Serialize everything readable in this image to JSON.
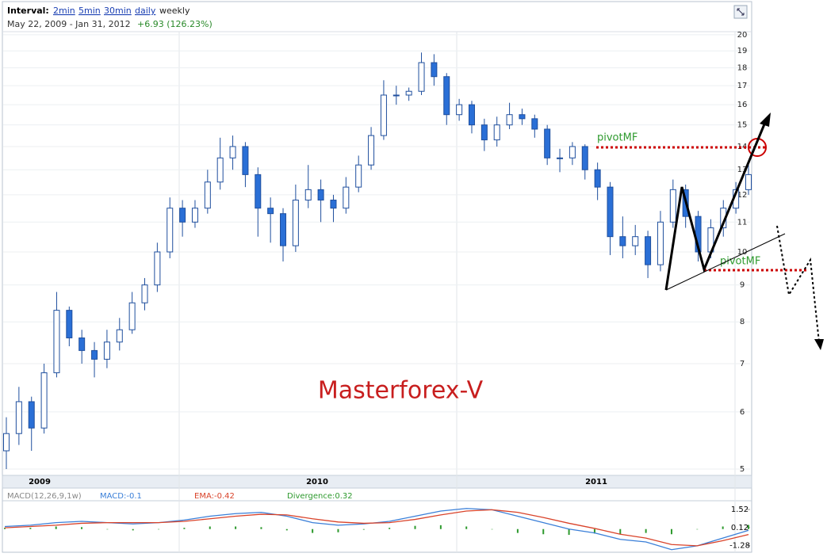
{
  "header": {
    "interval_label": "Interval:",
    "intervals": [
      "2min",
      "5min",
      "30min",
      "daily"
    ],
    "current_interval": "weekly",
    "date_range": "May 22, 2009 - Jan 31, 2012",
    "change": "+6.93 (126.23%)"
  },
  "chart_data": {
    "type": "candlestick",
    "title": "Masterforex-V",
    "log_scale": true,
    "ylim": [
      4.9,
      20.2
    ],
    "yticks": [
      5,
      6,
      7,
      8,
      9,
      10,
      11,
      12,
      13,
      14,
      15,
      16,
      17,
      18,
      19,
      20
    ],
    "x_labels": [
      "2009",
      "2010",
      "2011"
    ],
    "annotations": [
      "pivotMF",
      "pivotMF"
    ],
    "up_color": "#ffffff",
    "down_color": "#2a6fd6",
    "outline_color": "#1f4f9e",
    "open": [
      5.3,
      5.6,
      6.2,
      5.7,
      6.8,
      8.3,
      7.6,
      7.3,
      7.1,
      7.5,
      7.8,
      8.5,
      9.0,
      10.0,
      11.5,
      11.0,
      11.5,
      12.5,
      13.5,
      14.0,
      12.8,
      11.5,
      11.3,
      10.2,
      11.8,
      12.2,
      11.8,
      11.5,
      12.3,
      13.2,
      14.5,
      16.5,
      16.5,
      16.7,
      18.3,
      17.5,
      15.5,
      16.0,
      15.0,
      14.3,
      15.0,
      15.5,
      15.3,
      14.8,
      13.5,
      13.5,
      14.0,
      13.0,
      12.3,
      10.5,
      10.2,
      10.5,
      9.6,
      11.0,
      12.2,
      11.2,
      10.0,
      10.8,
      11.5,
      12.2
    ],
    "high": [
      5.9,
      6.5,
      6.3,
      7.0,
      8.8,
      8.4,
      7.8,
      7.5,
      7.8,
      8.1,
      8.8,
      9.2,
      10.3,
      11.9,
      11.8,
      11.8,
      13.0,
      14.4,
      14.5,
      14.2,
      13.1,
      11.9,
      11.5,
      12.4,
      13.2,
      12.6,
      12.0,
      12.7,
      13.6,
      14.9,
      17.3,
      17.0,
      16.9,
      18.9,
      18.8,
      17.7,
      16.3,
      16.2,
      15.3,
      15.4,
      16.1,
      15.8,
      15.5,
      15.0,
      13.9,
      14.2,
      14.1,
      13.3,
      12.5,
      11.2,
      10.9,
      10.7,
      11.4,
      12.6,
      12.4,
      11.4,
      11.1,
      11.8,
      12.5,
      13.2
    ],
    "low": [
      5.0,
      5.4,
      5.3,
      5.6,
      6.7,
      7.4,
      7.0,
      6.7,
      6.9,
      7.3,
      7.7,
      8.3,
      8.8,
      9.8,
      10.5,
      10.8,
      11.3,
      12.2,
      13.0,
      12.3,
      10.5,
      10.3,
      9.7,
      10.0,
      11.5,
      11.0,
      11.0,
      11.3,
      12.1,
      13.0,
      14.3,
      16.0,
      16.2,
      16.5,
      17.0,
      15.0,
      15.2,
      14.6,
      13.8,
      14.0,
      14.8,
      15.0,
      14.4,
      13.2,
      12.9,
      13.2,
      12.6,
      11.8,
      9.9,
      9.8,
      9.9,
      9.2,
      9.4,
      10.8,
      10.8,
      9.7,
      9.8,
      10.5,
      11.3,
      12.0
    ],
    "close": [
      5.6,
      6.2,
      5.7,
      6.8,
      8.3,
      7.6,
      7.3,
      7.1,
      7.5,
      7.8,
      8.5,
      9.0,
      10.0,
      11.5,
      11.0,
      11.5,
      12.5,
      13.5,
      14.0,
      12.8,
      11.5,
      11.3,
      10.2,
      11.8,
      12.2,
      11.8,
      11.5,
      12.3,
      13.2,
      14.5,
      16.5,
      16.5,
      16.7,
      18.3,
      17.5,
      15.5,
      16.0,
      15.0,
      14.3,
      15.0,
      15.5,
      15.3,
      14.8,
      13.5,
      13.5,
      14.0,
      13.0,
      12.3,
      10.5,
      10.2,
      10.5,
      9.6,
      11.0,
      12.2,
      11.2,
      10.0,
      10.8,
      11.5,
      12.2,
      12.8
    ]
  },
  "macd_panel": {
    "type": "line",
    "labels": [
      "MACD(12,26,9,1w)",
      "MACD:-0.1",
      "EMA:-0.42",
      "Divergence:0.32"
    ],
    "ylim": [
      -1.8,
      2.2
    ],
    "yticks": [
      1.52,
      0.12,
      -1.28
    ],
    "series": [
      {
        "color": "#3a7fd8",
        "values": [
          0.2,
          0.3,
          0.5,
          0.6,
          0.5,
          0.4,
          0.5,
          0.7,
          1.0,
          1.2,
          1.3,
          1.0,
          0.5,
          0.3,
          0.4,
          0.6,
          1.0,
          1.4,
          1.6,
          1.5,
          1.0,
          0.5,
          0.0,
          -0.3,
          -0.8,
          -1.0,
          -1.6,
          -1.3,
          -0.7,
          -0.1
        ]
      },
      {
        "color": "#d9432a",
        "values": [
          0.1,
          0.2,
          0.3,
          0.45,
          0.5,
          0.5,
          0.5,
          0.6,
          0.8,
          1.0,
          1.15,
          1.1,
          0.8,
          0.55,
          0.45,
          0.5,
          0.75,
          1.1,
          1.4,
          1.5,
          1.3,
          0.9,
          0.45,
          0.05,
          -0.4,
          -0.7,
          -1.2,
          -1.3,
          -0.9,
          -0.42
        ]
      }
    ],
    "divergence": {
      "color": "#2e9a2e",
      "values": [
        0.1,
        0.1,
        0.2,
        0.15,
        0,
        -0.1,
        0,
        0.1,
        0.2,
        0.2,
        0.15,
        -0.1,
        -0.3,
        -0.25,
        -0.05,
        0.1,
        0.25,
        0.3,
        0.2,
        0,
        -0.3,
        -0.4,
        -0.45,
        -0.35,
        -0.4,
        -0.3,
        -0.4,
        0,
        0.2,
        0.32
      ]
    }
  }
}
